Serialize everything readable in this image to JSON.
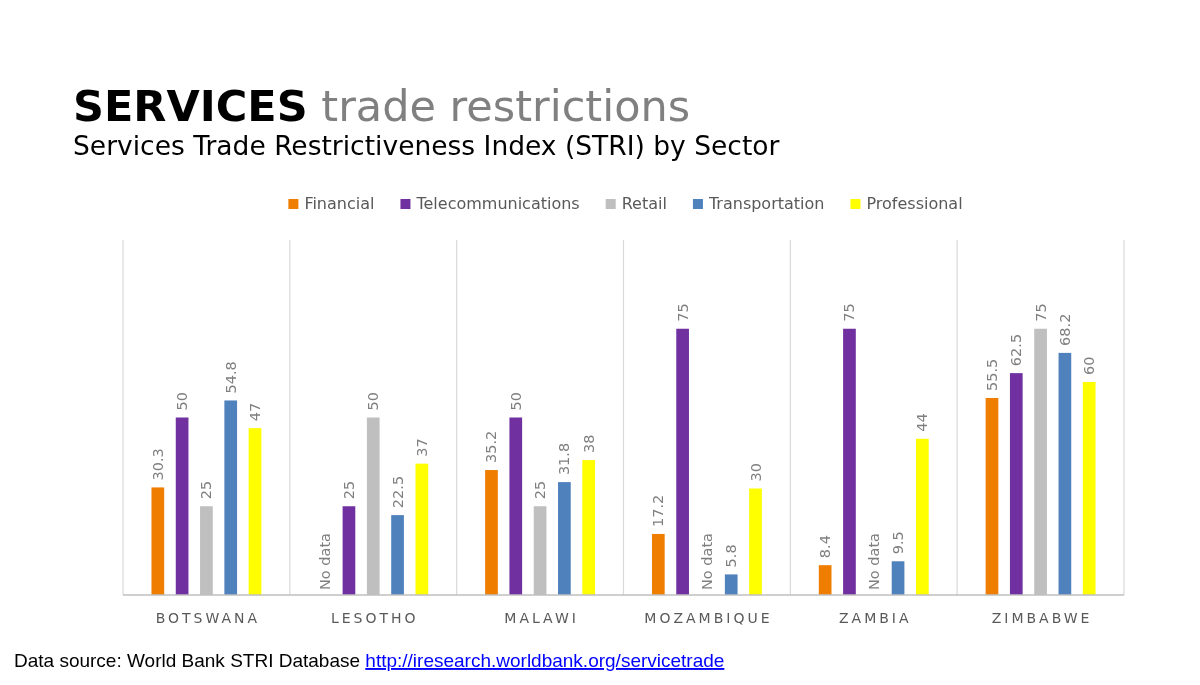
{
  "chart_data": {
    "type": "bar",
    "title": "SERVICES trade restrictions",
    "subtitle": "Services Trade Restrictiveness Index (STRI) by Sector",
    "categories": [
      "BOTSWANA",
      "LESOTHO",
      "MALAWI",
      "MOZAMBIQUE",
      "ZAMBIA",
      "ZIMBABWE"
    ],
    "series": [
      {
        "name": "Financial",
        "color": "#ef7d00",
        "values": [
          30.3,
          null,
          35.2,
          17.2,
          8.4,
          55.5
        ],
        "value_labels": [
          "30.3",
          "No data",
          "35.2",
          "17.2",
          "8.4",
          "55.5"
        ]
      },
      {
        "name": "Telecommunications",
        "color": "#7030a0",
        "values": [
          50,
          25,
          50,
          75,
          75,
          62.5
        ],
        "value_labels": [
          "50",
          "25",
          "50",
          "75",
          "75",
          "62.5"
        ]
      },
      {
        "name": "Retail",
        "color": "#bfbfbf",
        "values": [
          25,
          50,
          25,
          null,
          null,
          75
        ],
        "value_labels": [
          "25",
          "50",
          "25",
          "No data",
          "No data",
          "75"
        ]
      },
      {
        "name": "Transportation",
        "color": "#4f81bd",
        "values": [
          54.8,
          22.5,
          31.8,
          5.8,
          9.5,
          68.2
        ],
        "value_labels": [
          "54.8",
          "22.5",
          "31.8",
          "5.8",
          "9.5",
          "68.2"
        ]
      },
      {
        "name": "Professional",
        "color": "#ffff00",
        "values": [
          47,
          37,
          38,
          30,
          44,
          60
        ],
        "value_labels": [
          "47",
          "37",
          "38",
          "30",
          "44",
          "60"
        ]
      }
    ],
    "ylim": [
      0,
      100
    ],
    "tick_labels": "x",
    "grid": "x",
    "legend": "top",
    "annotations": [
      "Data source: World Bank STRI Database http://iresearch.worldbank.org/servicetrade"
    ]
  }
}
